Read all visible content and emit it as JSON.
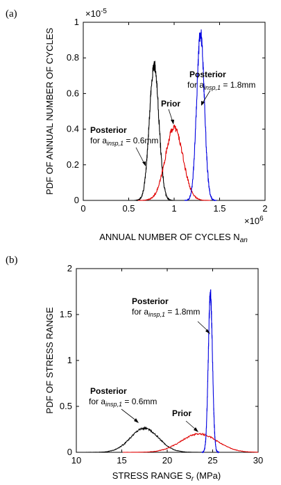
{
  "chart_data": [
    {
      "panel_label": "(a)",
      "type": "line",
      "xlabel": "ANNUAL NUMBER OF CYCLES N",
      "xlabel_sub": "an",
      "ylabel": "PDF OF ANNUAL NUMBER OF CYCLES",
      "x_multiplier_label": "×10",
      "x_multiplier_exp": "6",
      "y_multiplier_label": "×10",
      "y_multiplier_exp": "-5",
      "xlim": [
        0,
        2
      ],
      "ylim": [
        0,
        1
      ],
      "xticks": [
        0,
        0.5,
        1,
        1.5,
        2
      ],
      "xtick_labels": [
        "0",
        "0.5",
        "1",
        "1.5",
        "2"
      ],
      "yticks": [
        0,
        0.2,
        0.4,
        0.6,
        0.8,
        1
      ],
      "ytick_labels": [
        "0",
        "0.2",
        "0.4",
        "0.6",
        "0.8",
        "1"
      ],
      "series": [
        {
          "color": "#000000",
          "mean": 0.78,
          "sd": 0.052,
          "peak": 0.76
        },
        {
          "color": "#e00000",
          "mean": 1.0,
          "sd": 0.095,
          "peak": 0.41
        },
        {
          "color": "#0000e0",
          "mean": 1.29,
          "sd": 0.042,
          "peak": 0.94
        }
      ],
      "annotations": [
        {
          "bold": "Posterior",
          "prefix": "for a",
          "sub": "insp,1",
          "suffix": " = 1.8mm"
        },
        {
          "bold": "Prior"
        },
        {
          "bold": "Posterior",
          "prefix": "for a",
          "sub": "insp,1",
          "suffix": " = 0.6mm"
        }
      ]
    },
    {
      "panel_label": "(b)",
      "type": "line",
      "xlabel": "STRESS RANGE S",
      "xlabel_sub": "r",
      "xlabel_suffix": " (MPa)",
      "ylabel": "PDF OF STRESS RANGE",
      "xlim": [
        10,
        30
      ],
      "ylim": [
        0,
        2
      ],
      "xticks": [
        10,
        15,
        20,
        25,
        30
      ],
      "xtick_labels": [
        "10",
        "15",
        "20",
        "25",
        "30"
      ],
      "yticks": [
        0,
        0.5,
        1,
        1.5,
        2
      ],
      "ytick_labels": [
        "0",
        "0.5",
        "1",
        "1.5",
        "2"
      ],
      "series": [
        {
          "color": "#000000",
          "mean": 17.5,
          "sd": 1.55,
          "peak": 0.26
        },
        {
          "color": "#e00000",
          "mean": 23.5,
          "sd": 2.0,
          "peak": 0.2
        },
        {
          "color": "#0000e0",
          "mean": 24.75,
          "sd": 0.23,
          "peak": 1.72
        }
      ],
      "annotations": [
        {
          "bold": "Posterior",
          "prefix": "for a",
          "sub": "insp,1",
          "suffix": " = 1.8mm"
        },
        {
          "bold": "Posterior",
          "prefix": "for a",
          "sub": "insp,1",
          "suffix": " = 0.6mm"
        },
        {
          "bold": "Prior"
        }
      ]
    }
  ]
}
